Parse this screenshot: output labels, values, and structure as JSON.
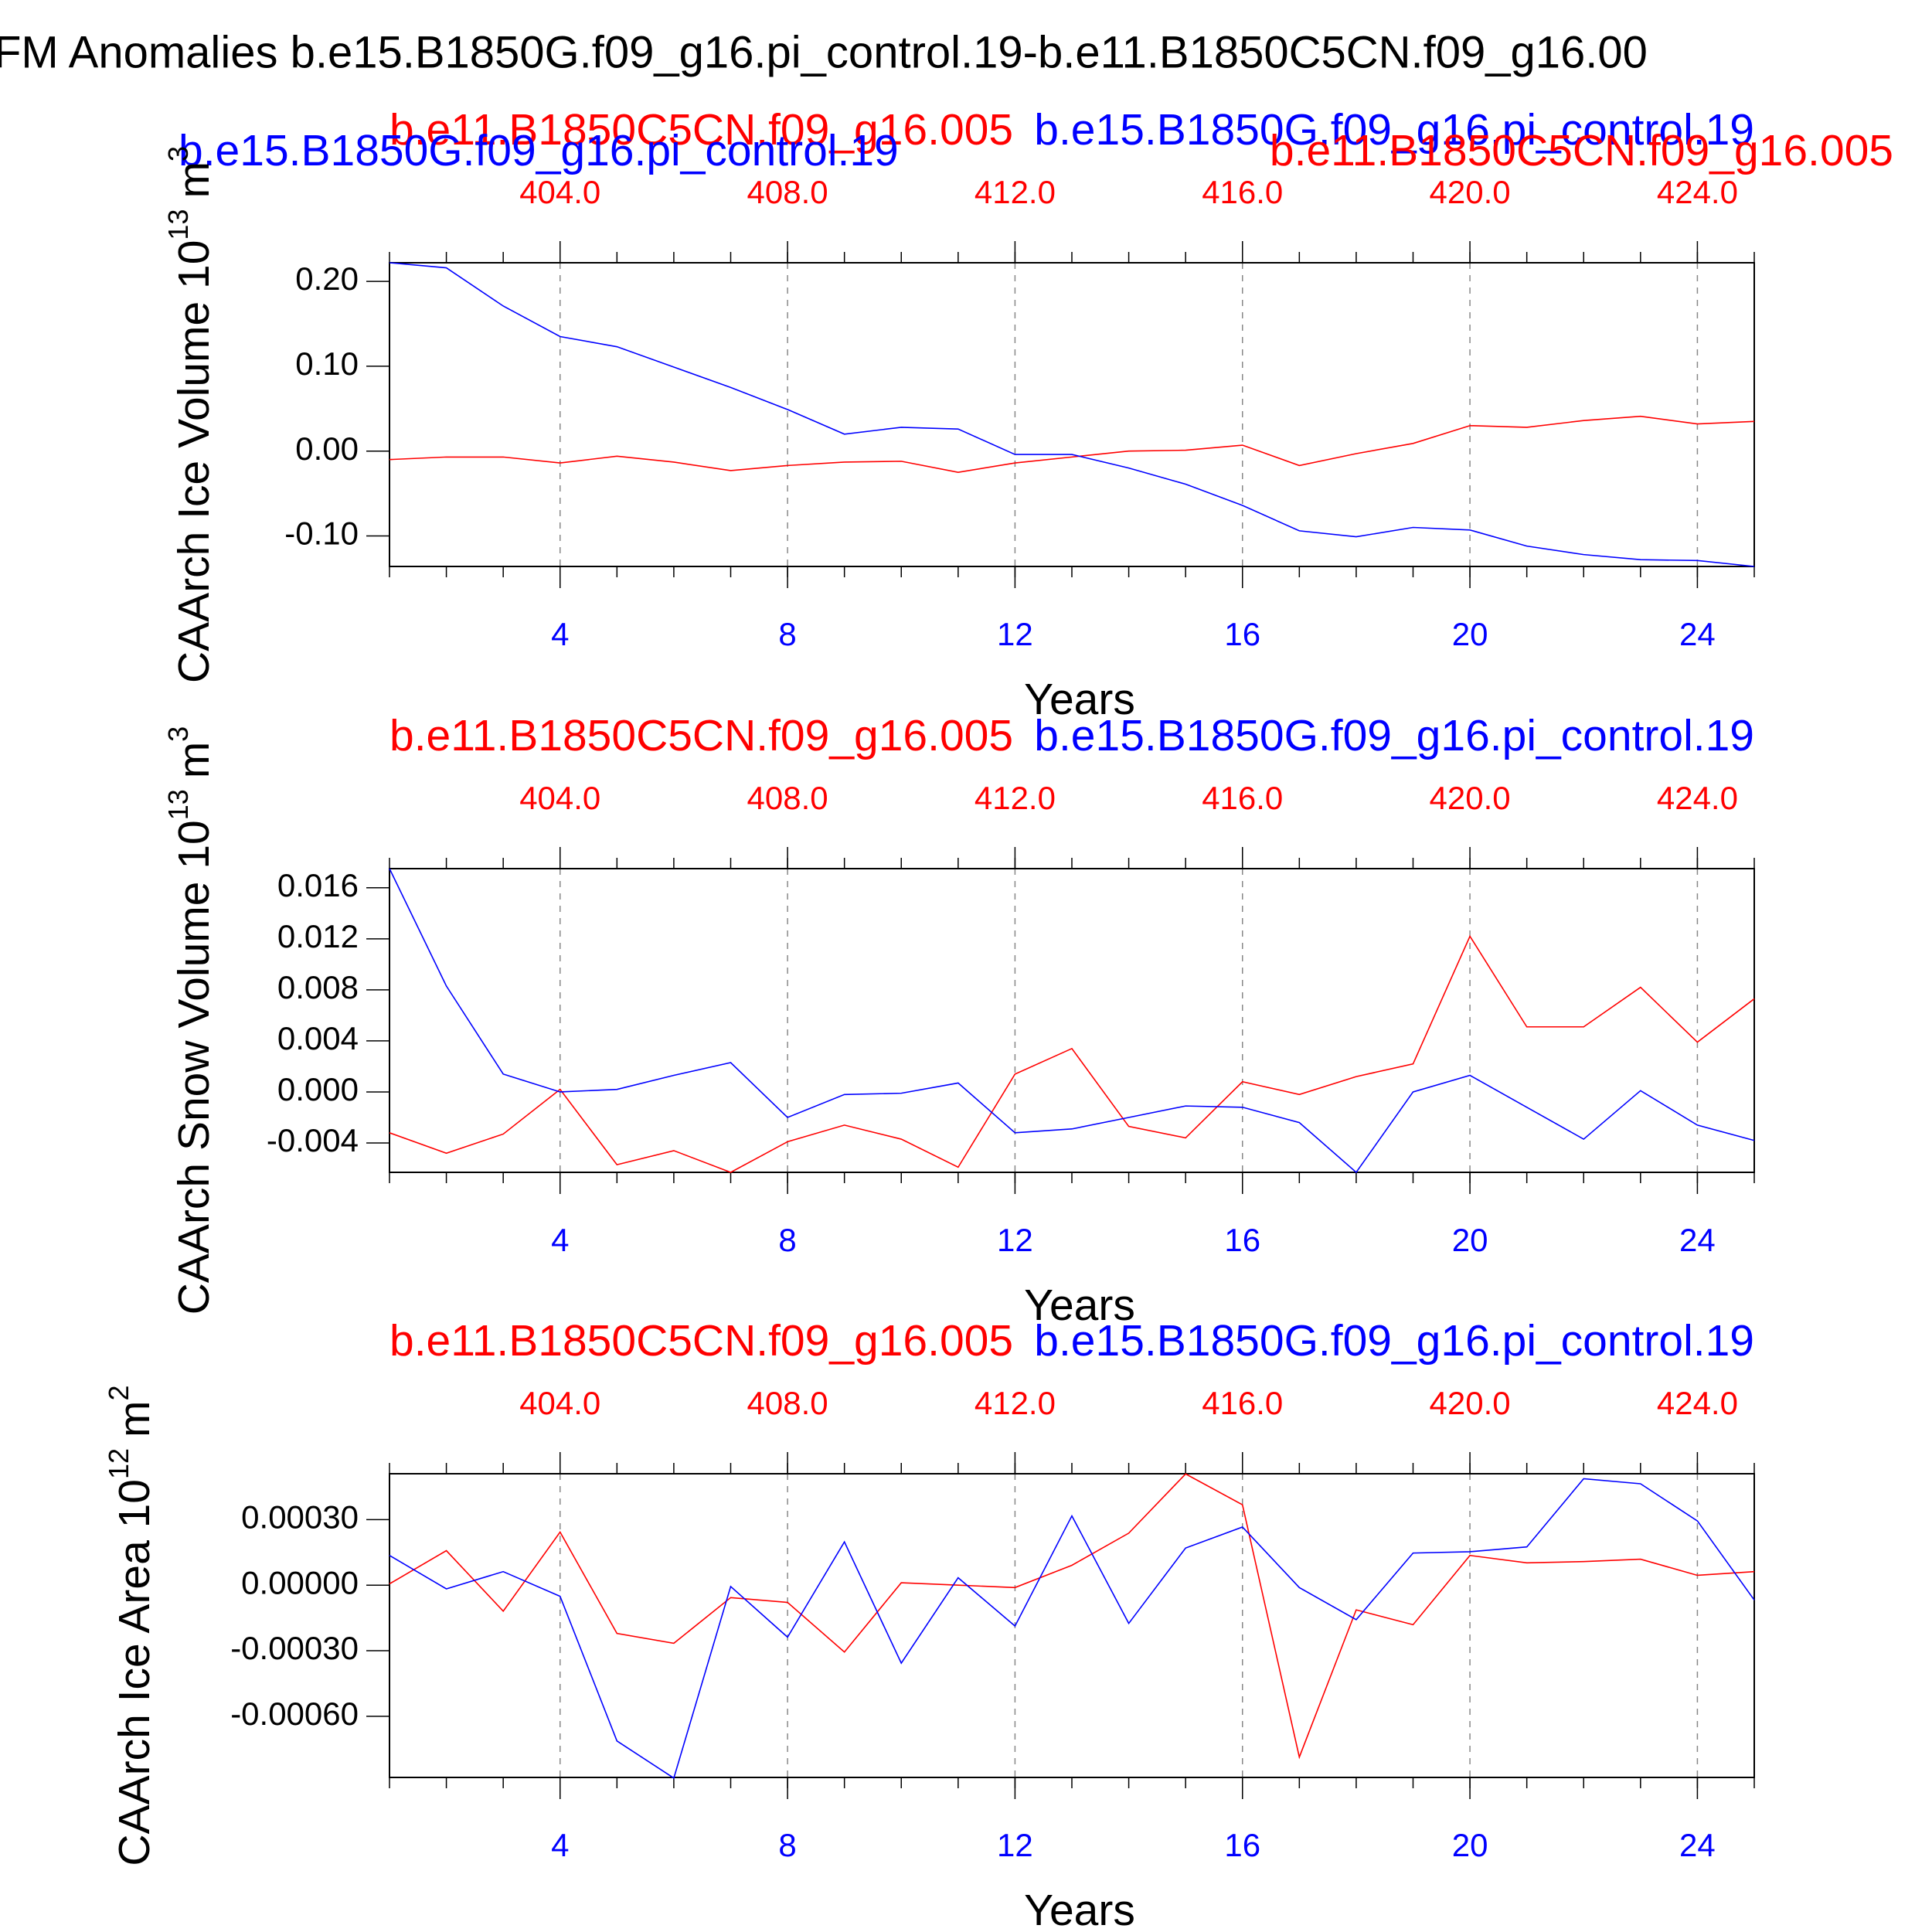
{
  "title": "FM Anomalies b.e15.B1850G.f09_g16.pi_control.19-b.e11.B1850C5CN.f09_g16.00",
  "chart_data": [
    {
      "type": "line",
      "ylabel": "CAArch Ice Volume 10",
      "ylabel_exponent": "13",
      "ylabel_unit": "m",
      "ylabel_unit_exponent": "3",
      "xlabel": "Years",
      "x": [
        1,
        2,
        3,
        4,
        5,
        6,
        7,
        8,
        9,
        10,
        11,
        12,
        13,
        14,
        15,
        16,
        17,
        18,
        19,
        20,
        21,
        22,
        23,
        24,
        25
      ],
      "xlim": [
        1,
        25
      ],
      "xticks": [
        4,
        8,
        12,
        16,
        20,
        24
      ],
      "x2lim": [
        401,
        425
      ],
      "x2ticks": [
        {
          "value": 404,
          "label": "404.0"
        },
        {
          "value": 408,
          "label": "408.0"
        },
        {
          "value": 412,
          "label": "412.0"
        },
        {
          "value": 416,
          "label": "416.0"
        },
        {
          "value": 420,
          "label": "420.0"
        },
        {
          "value": 424,
          "label": "424.0"
        }
      ],
      "ylim": [
        -0.136,
        0.222
      ],
      "yticks": [
        {
          "value": -0.1,
          "label": "-0.10"
        },
        {
          "value": 0,
          "label": "0.00"
        },
        {
          "value": 0.1,
          "label": "0.10"
        },
        {
          "value": 0.2,
          "label": "0.20"
        }
      ],
      "grid": "x-dashed",
      "overlay_labels": true,
      "series": [
        {
          "name": "b.e11.B1850C5CN.f09_g16.005",
          "color": "#ff0000",
          "values": [
            -0.01,
            -0.007,
            -0.007,
            -0.014,
            -0.006,
            -0.013,
            -0.023,
            -0.017,
            -0.013,
            -0.012,
            -0.025,
            -0.014,
            -0.007,
            0.0,
            0.001,
            0.007,
            -0.017,
            -0.003,
            0.009,
            0.03,
            0.028,
            0.036,
            0.041,
            0.032,
            0.035
          ]
        },
        {
          "name": "b.e15.B1850G.f09_g16.pi_control.19",
          "color": "#0000ff",
          "values": [
            0.222,
            0.216,
            0.171,
            0.135,
            0.123,
            0.099,
            0.075,
            0.049,
            0.02,
            0.028,
            0.026,
            -0.004,
            -0.004,
            -0.02,
            -0.039,
            -0.064,
            -0.094,
            -0.101,
            -0.09,
            -0.093,
            -0.112,
            -0.122,
            -0.128,
            -0.129,
            -0.136
          ]
        }
      ]
    },
    {
      "type": "line",
      "ylabel": "CAArch Snow Volume 10",
      "ylabel_exponent": "13",
      "ylabel_unit": "m",
      "ylabel_unit_exponent": "3",
      "xlabel": "Years",
      "x": [
        1,
        2,
        3,
        4,
        5,
        6,
        7,
        8,
        9,
        10,
        11,
        12,
        13,
        14,
        15,
        16,
        17,
        18,
        19,
        20,
        21,
        22,
        23,
        24,
        25
      ],
      "xlim": [
        1,
        25
      ],
      "xticks": [
        4,
        8,
        12,
        16,
        20,
        24
      ],
      "x2lim": [
        401,
        425
      ],
      "x2ticks": [
        {
          "value": 404,
          "label": "404.0"
        },
        {
          "value": 408,
          "label": "408.0"
        },
        {
          "value": 412,
          "label": "412.0"
        },
        {
          "value": 416,
          "label": "416.0"
        },
        {
          "value": 420,
          "label": "420.0"
        },
        {
          "value": 424,
          "label": "424.0"
        }
      ],
      "ylim": [
        -0.0063,
        0.0175
      ],
      "yticks": [
        -0.004,
        {
          "value": 0,
          "label": "0.000"
        },
        0.004,
        0.008,
        0.012,
        0.016
      ],
      "grid": "x-dashed",
      "series": [
        {
          "name": "b.e11.B1850C5CN.f09_g16.005",
          "color": "#ff0000",
          "values": [
            -0.0032,
            -0.0048,
            -0.0033,
            0.0002,
            -0.0057,
            -0.0046,
            -0.0063,
            -0.0039,
            -0.0026,
            -0.0037,
            -0.0059,
            0.0014,
            0.0034,
            -0.0027,
            -0.0036,
            0.0008,
            -0.0002,
            0.0012,
            0.0022,
            0.0122,
            0.0051,
            0.0051,
            0.0082,
            0.0039,
            0.0073
          ]
        },
        {
          "name": "b.e15.B1850G.f09_g16.pi_control.19",
          "color": "#0000ff",
          "values": [
            0.0175,
            0.0083,
            0.0014,
            0.0,
            0.0002,
            0.0013,
            0.0023,
            -0.002,
            -0.0002,
            -0.0001,
            0.0007,
            -0.0032,
            -0.0029,
            -0.002,
            -0.0011,
            -0.0012,
            -0.0024,
            -0.0063,
            0.0,
            0.0013,
            -0.0012,
            -0.0037,
            0.0001,
            -0.0026,
            -0.0038
          ]
        }
      ]
    },
    {
      "type": "line",
      "ylabel": "CAArch Ice Area 10",
      "ylabel_exponent": "12",
      "ylabel_unit": "m",
      "ylabel_unit_exponent": "2",
      "xlabel": "Years",
      "x": [
        1,
        2,
        3,
        4,
        5,
        6,
        7,
        8,
        9,
        10,
        11,
        12,
        13,
        14,
        15,
        16,
        17,
        18,
        19,
        20,
        21,
        22,
        23,
        24,
        25
      ],
      "xlim": [
        1,
        25
      ],
      "xticks": [
        4,
        8,
        12,
        16,
        20,
        24
      ],
      "x2lim": [
        401,
        425
      ],
      "x2ticks": [
        {
          "value": 404,
          "label": "404.0"
        },
        {
          "value": 408,
          "label": "408.0"
        },
        {
          "value": 412,
          "label": "412.0"
        },
        {
          "value": 416,
          "label": "416.0"
        },
        {
          "value": 420,
          "label": "420.0"
        },
        {
          "value": 424,
          "label": "424.0"
        }
      ],
      "ylim": [
        -0.00088,
        0.00051
      ],
      "yticks": [
        {
          "value": -0.0006,
          "label": "-0.00060"
        },
        {
          "value": -0.0003,
          "label": "-0.00030"
        },
        {
          "value": 0,
          "label": "0.00000"
        },
        {
          "value": 0.0003,
          "label": "0.00030"
        }
      ],
      "grid": "x-dashed",
      "series": [
        {
          "name": "b.e11.B1850C5CN.f09_g16.005",
          "color": "#ff0000",
          "values": [
            6e-06,
            0.000158,
            -0.000119,
            0.000243,
            -0.000221,
            -0.000266,
            -5.7e-05,
            -7.9e-05,
            -0.000306,
            1.1e-05,
            0.0,
            -1.1e-05,
            9.1e-05,
            0.000238,
            0.000509,
            0.000368,
            -0.000787,
            -0.000113,
            -0.000181,
            0.000136,
            0.000102,
            0.000108,
            0.000119,
            4.5e-05,
            6.2e-05
          ]
        },
        {
          "name": "b.e15.B1850G.f09_g16.pi_control.19",
          "color": "#0000ff",
          "values": [
            0.000136,
            -1.7e-05,
            6.2e-05,
            -5.1e-05,
            -0.000713,
            -0.000883,
            -6e-06,
            -0.000238,
            0.000198,
            -0.000357,
            3.4e-05,
            -0.000187,
            0.000317,
            -0.000175,
            0.00017,
            0.000266,
            -1.1e-05,
            -0.000158,
            0.000147,
            0.000153,
            0.000175,
            0.000487,
            0.000464,
            0.000294,
            -6.8e-05
          ]
        }
      ]
    }
  ]
}
